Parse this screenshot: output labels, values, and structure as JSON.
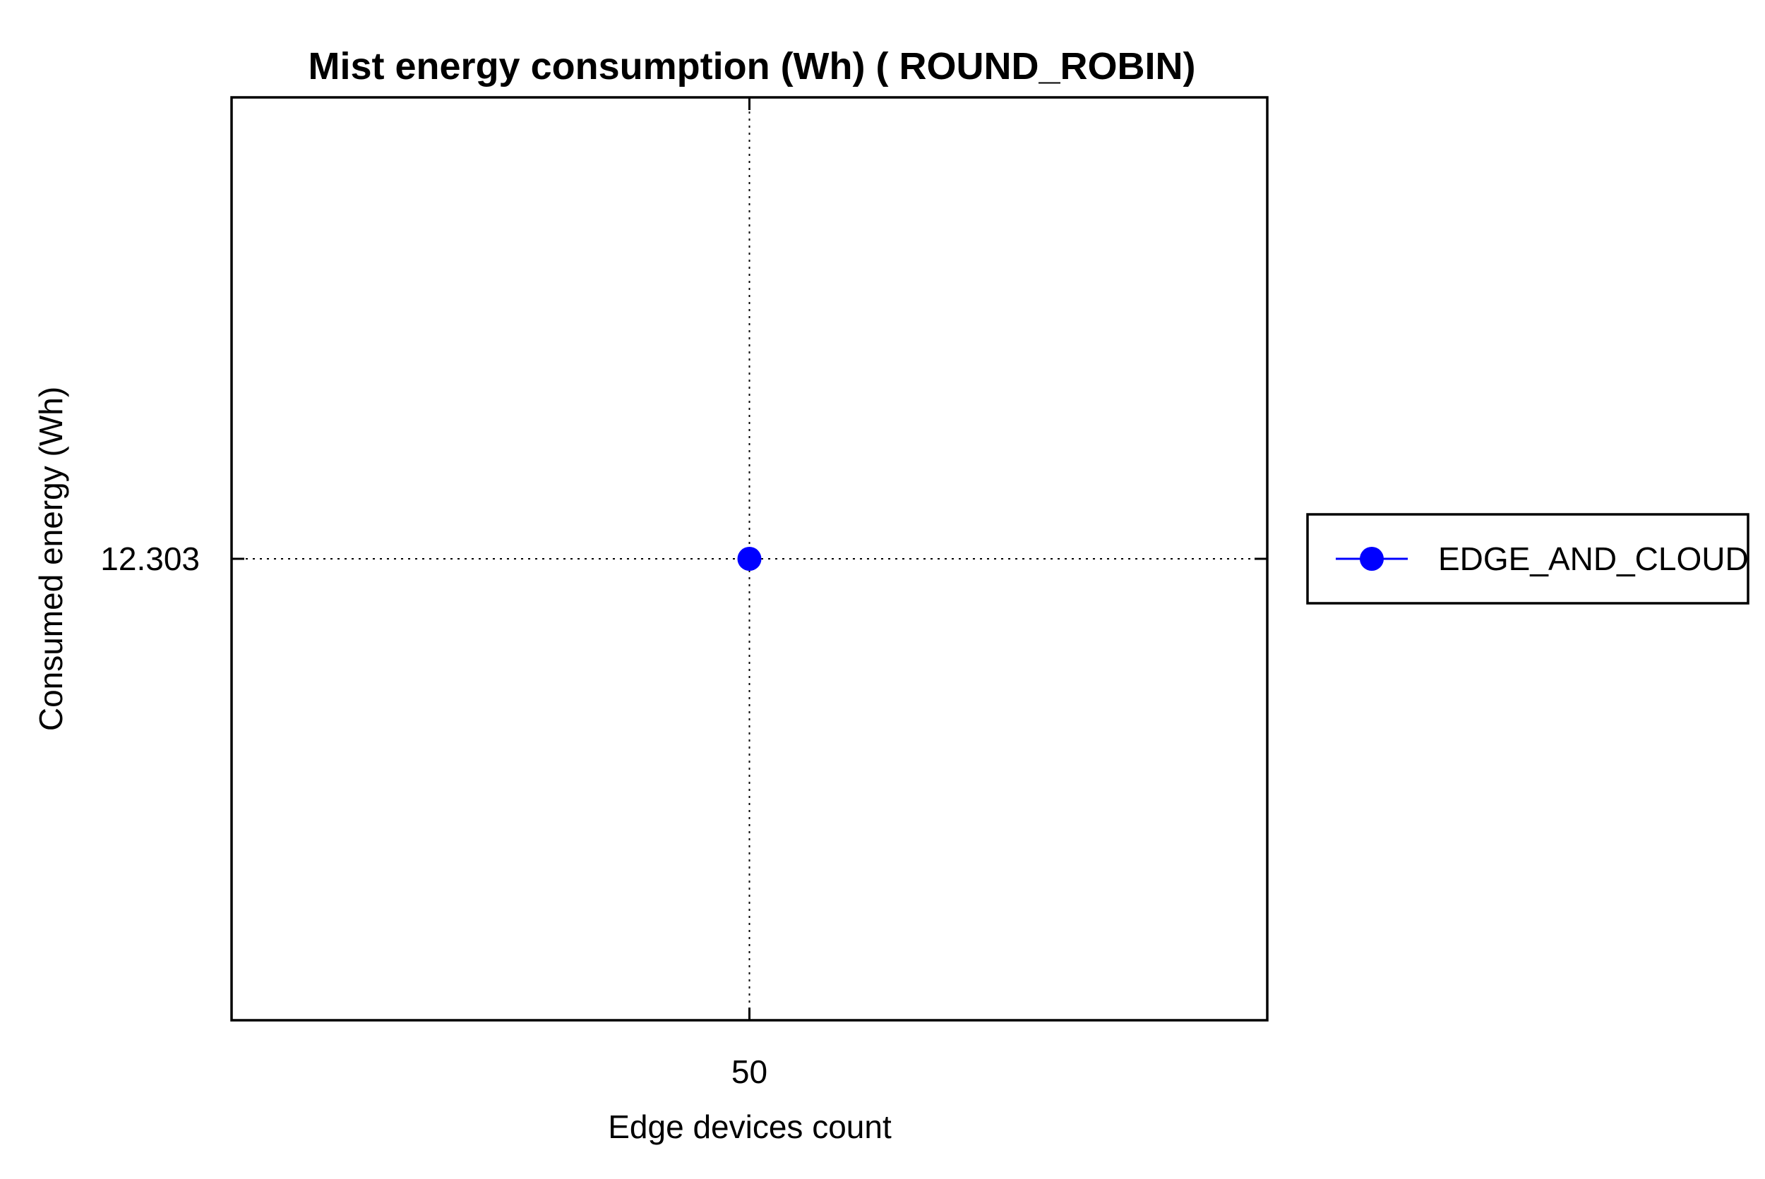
{
  "chart_data": {
    "type": "scatter",
    "title": "Mist energy consumption (Wh) ( ROUND_ROBIN)",
    "xlabel": "Edge devices count",
    "ylabel": "Consumed energy (Wh)",
    "x_ticks": [
      "50"
    ],
    "y_ticks": [
      "12.303"
    ],
    "xlim": [
      49,
      51
    ],
    "ylim": [
      12.302,
      12.304
    ],
    "grid": true,
    "legend_position": "right",
    "series": [
      {
        "name": "EDGE_AND_CLOUD",
        "color": "#0000ff",
        "marker": "circle",
        "points": [
          {
            "x": 50,
            "y": 12.303
          }
        ]
      }
    ]
  }
}
